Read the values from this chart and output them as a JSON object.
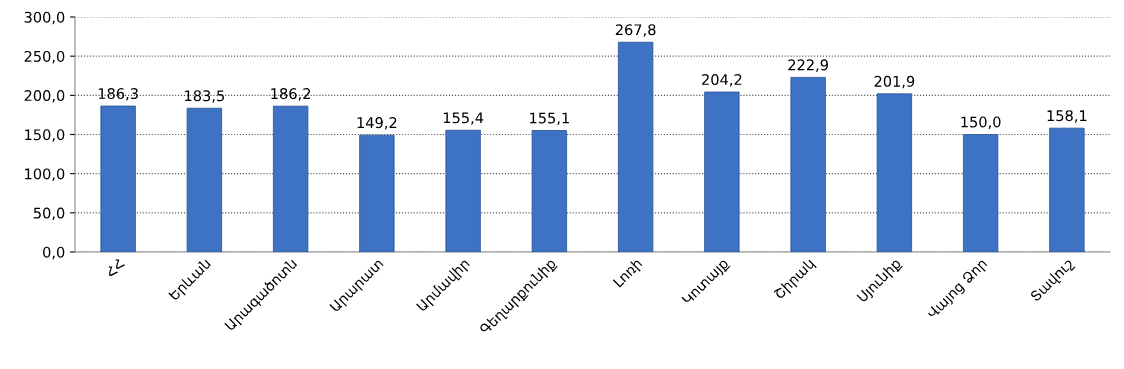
{
  "chart_data": {
    "type": "bar",
    "categories": [
      "ՀՀ",
      "Երևան",
      "Արագածոտն",
      "Արարատ",
      "Արմավիր",
      "Գեղարքունիք",
      "Լոռի",
      "Կոտայք",
      "Շիրակ",
      "Սյունիք",
      "Վայոց Ձոր",
      "Տավուշ"
    ],
    "values": [
      186.3,
      183.5,
      186.2,
      149.2,
      155.4,
      155.1,
      267.8,
      204.2,
      222.9,
      201.9,
      150.0,
      158.1
    ],
    "value_labels": [
      "186,3",
      "183,5",
      "186,2",
      "149,2",
      "155,4",
      "155,1",
      "267,8",
      "204,2",
      "222,9",
      "201,9",
      "150,0",
      "158,1"
    ],
    "color": "#3d72c4",
    "ylim": [
      0,
      300
    ],
    "yticks": [
      {
        "value": 0,
        "label": "0,0"
      },
      {
        "value": 50,
        "label": "50,0"
      },
      {
        "value": 100,
        "label": "100,0"
      },
      {
        "value": 150,
        "label": "150,0"
      },
      {
        "value": 200,
        "label": "200,0"
      },
      {
        "value": 250,
        "label": "250,0"
      },
      {
        "value": 300,
        "label": "300,0"
      }
    ],
    "grid": "y"
  }
}
